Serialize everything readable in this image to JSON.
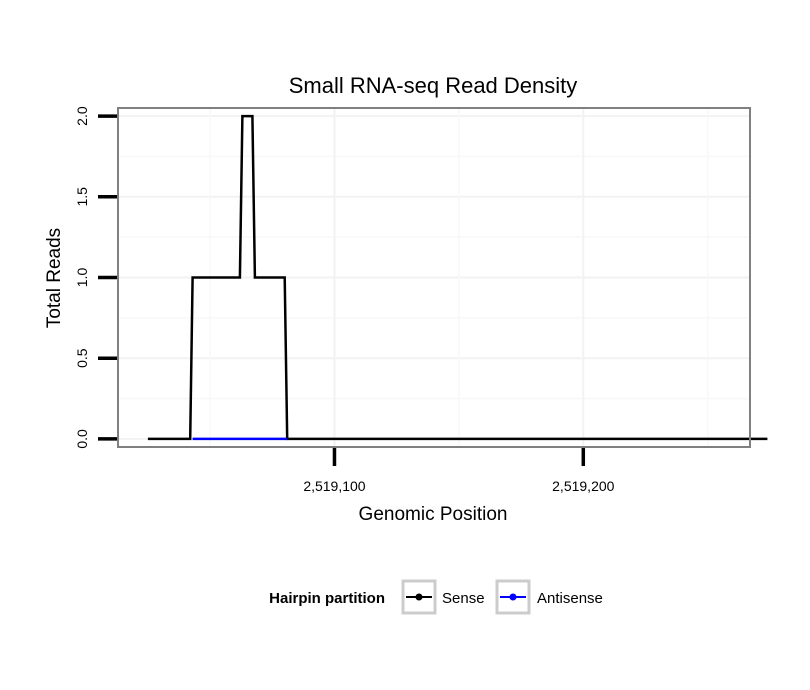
{
  "chart_data": {
    "type": "line",
    "title": "Small RNA-seq Read Density",
    "xlabel": "Genomic Position",
    "ylabel": "Total Reads",
    "xlim": [
      2519013,
      2519267
    ],
    "ylim": [
      -0.05,
      2.05
    ],
    "x_ticks": [
      2519100,
      2519200
    ],
    "x_tick_labels": [
      "2,519,100",
      "2,519,200"
    ],
    "y_ticks": [
      0.0,
      0.5,
      1.0,
      1.5,
      2.0
    ],
    "y_tick_labels": [
      "0.0",
      "0.5",
      "1.0",
      "1.5",
      "2.0"
    ],
    "grid": true,
    "legend_title": "Hairpin partition",
    "legend_position": "bottom",
    "series": [
      {
        "name": "Sense",
        "color": "#000000",
        "x": [
          2519025,
          2519042,
          2519043,
          2519062,
          2519063,
          2519067,
          2519068,
          2519080,
          2519081,
          2519274
        ],
        "y": [
          0,
          0,
          1,
          1,
          2,
          2,
          1,
          1,
          0,
          0
        ]
      },
      {
        "name": "Antisense",
        "color": "#0000ff",
        "x": [
          2519043,
          2519081
        ],
        "y": [
          0,
          0
        ]
      }
    ]
  }
}
